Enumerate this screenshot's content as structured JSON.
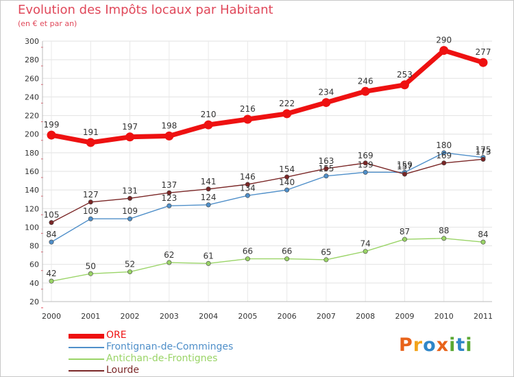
{
  "chart_data": {
    "type": "line",
    "title": "Evolution des Impôts locaux par Habitant",
    "subtitle": "(en € et par an)",
    "xlabel": "",
    "ylabel": "",
    "categories": [
      "2000",
      "2001",
      "2002",
      "2003",
      "2004",
      "2005",
      "2006",
      "2007",
      "2008",
      "2009",
      "2010",
      "2011"
    ],
    "ylim": [
      20,
      300
    ],
    "yticks": [
      20,
      40,
      60,
      80,
      100,
      120,
      140,
      160,
      180,
      200,
      220,
      240,
      260,
      280,
      300
    ],
    "grid": true,
    "legend_position": "bottom-left",
    "series": [
      {
        "name": "ORE",
        "color": "#ee1111",
        "values": [
          199,
          191,
          197,
          198,
          210,
          216,
          222,
          234,
          246,
          253,
          290,
          277
        ],
        "labels": [
          "199",
          "191",
          "197",
          "198",
          "210",
          "216",
          "222",
          "234",
          "246",
          "253",
          "290",
          "277"
        ]
      },
      {
        "name": "Frontignan-de-Comminges",
        "color": "#4f8fc9",
        "values": [
          84,
          109,
          109,
          123,
          124,
          134,
          140,
          155,
          159,
          159,
          180,
          175
        ],
        "labels": [
          "84",
          "109",
          "109",
          "123",
          "124",
          "134",
          "140",
          "155",
          "159",
          "159",
          "180",
          "175"
        ]
      },
      {
        "name": "Antichan-de-Frontignes",
        "color": "#9ad467",
        "values": [
          42,
          50,
          52,
          62,
          61,
          66,
          66,
          65,
          74,
          87,
          88,
          84
        ],
        "labels": [
          "42",
          "50",
          "52",
          "62",
          "61",
          "66",
          "66",
          "65",
          "74",
          "87",
          "88",
          "84"
        ]
      },
      {
        "name": "Lourde",
        "color": "#7a2626",
        "values": [
          105,
          127,
          131,
          137,
          141,
          146,
          154,
          163,
          169,
          157,
          169,
          173
        ],
        "labels": [
          "105",
          "127",
          "131",
          "137",
          "141",
          "146",
          "154",
          "163",
          "169",
          "157",
          "169",
          "173"
        ]
      }
    ]
  },
  "brand": {
    "logo_text": "Proxiti"
  }
}
